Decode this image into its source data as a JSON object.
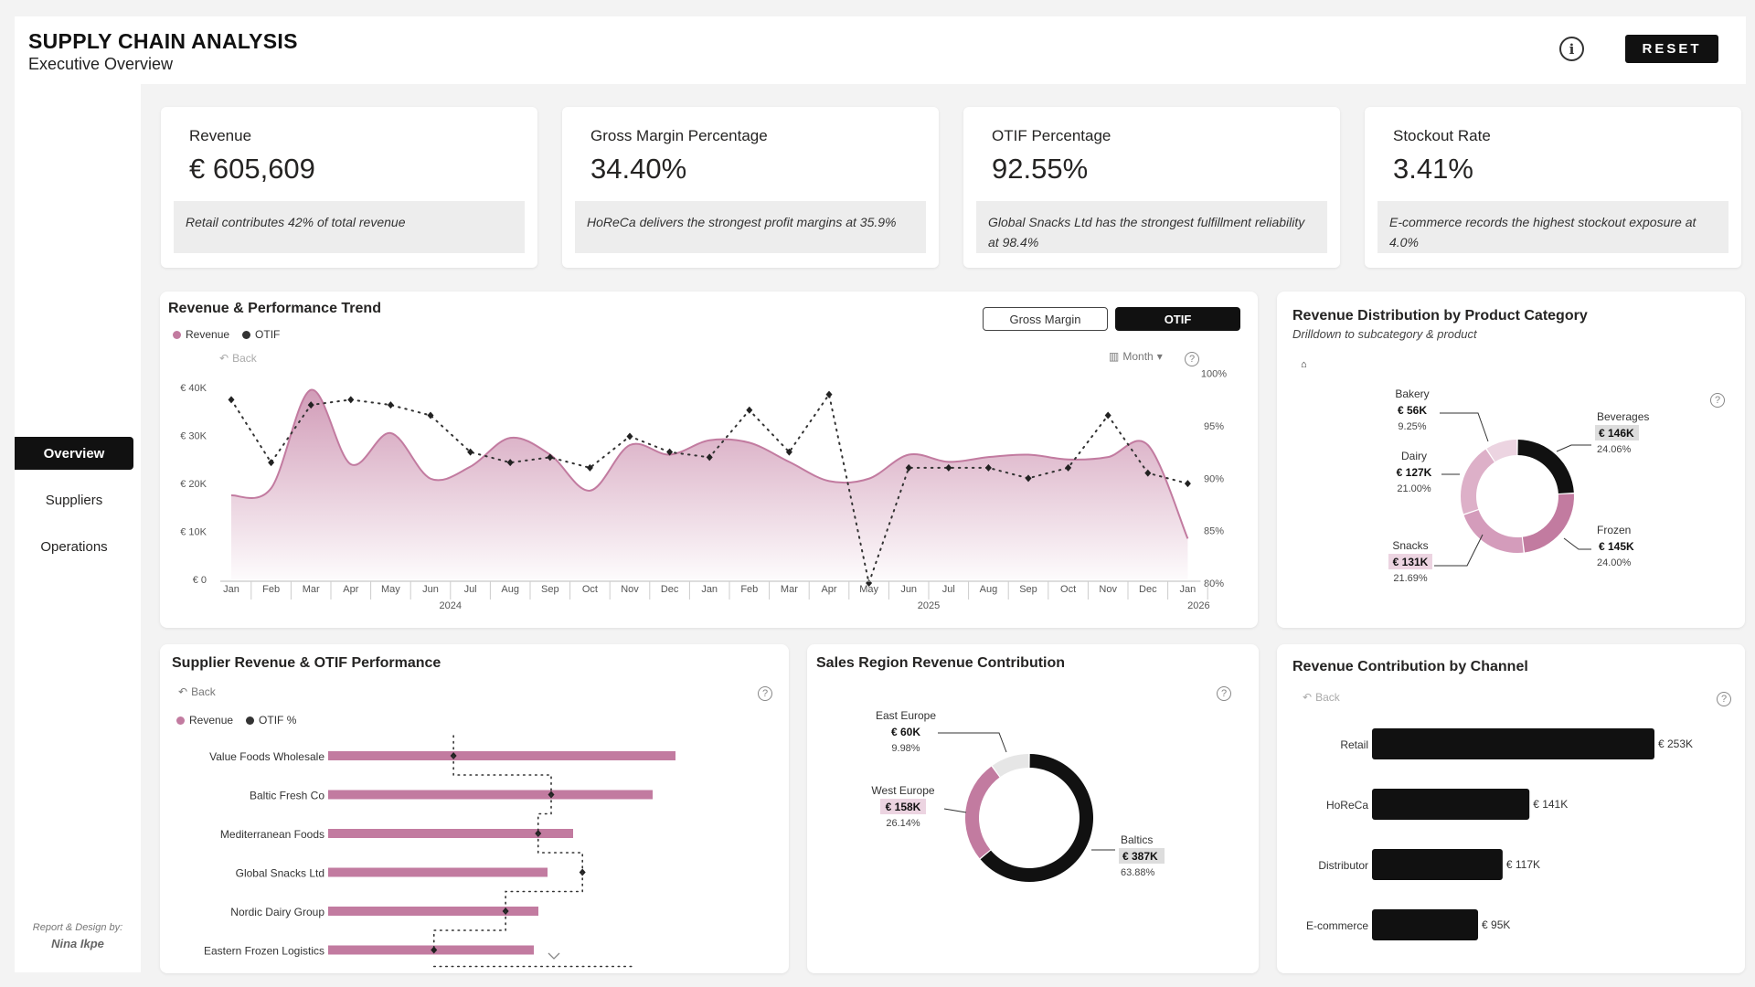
{
  "header": {
    "title": "SUPPLY CHAIN ANALYSIS",
    "subtitle": "Executive Overview",
    "info_label": "i",
    "reset_label": "RESET"
  },
  "sidebar": {
    "items": [
      {
        "label": "Overview",
        "active": true
      },
      {
        "label": "Suppliers",
        "active": false
      },
      {
        "label": "Operations",
        "active": false
      }
    ],
    "credit_label": "Report & Design by:",
    "credit_author": "Nina Ikpe"
  },
  "kpis": [
    {
      "label": "Revenue",
      "value": "€ 605,609",
      "note": "Retail contributes 42% of total revenue"
    },
    {
      "label": "Gross Margin Percentage",
      "value": "34.40%",
      "note": "HoReCa delivers the strongest profit margins at 35.9%"
    },
    {
      "label": "OTIF Percentage",
      "value": "92.55%",
      "note": "Global Snacks Ltd has the strongest fulfillment reliability at 98.4%"
    },
    {
      "label": "Stockout Rate",
      "value": "3.41%",
      "note": "E-commerce records the highest stockout exposure at 4.0%"
    }
  ],
  "trend": {
    "title": "Revenue & Performance Trend",
    "toggle_gross_margin": "Gross Margin",
    "toggle_otif": "OTIF",
    "back_label": "Back",
    "granularity_label": "Month",
    "legend_revenue": "Revenue",
    "legend_otif": "OTIF",
    "question": "?"
  },
  "category": {
    "title": "Revenue Distribution by Product Category",
    "subtitle": "Drilldown to subcategory & product",
    "question": "?"
  },
  "supplier": {
    "title": "Supplier Revenue & OTIF Performance",
    "back_label": "Back",
    "legend_revenue": "Revenue",
    "legend_otif": "OTIF %",
    "question": "?"
  },
  "region": {
    "title": "Sales Region Revenue Contribution",
    "question": "?"
  },
  "channel": {
    "title": "Revenue Contribution by Channel",
    "back_label": "Back",
    "question": "?"
  },
  "colors": {
    "pink": "#c27ba0",
    "pink_light": "#ddb0c8",
    "pink_pale": "#ecd4e1",
    "dark": "#111111",
    "gray": "#e6e6e6"
  },
  "chart_data": [
    {
      "type": "area",
      "name": "revenue-performance-trend",
      "x": [
        "Jan",
        "Feb",
        "Mar",
        "Apr",
        "May",
        "Jun",
        "Jul",
        "Aug",
        "Sep",
        "Oct",
        "Nov",
        "Dec",
        "Jan",
        "Feb",
        "Mar",
        "Apr",
        "May",
        "Jun",
        "Jul",
        "Aug",
        "Sep",
        "Oct",
        "Nov",
        "Dec",
        "Jan"
      ],
      "x_groups": [
        {
          "label": "2024",
          "start": 0,
          "end": 11
        },
        {
          "label": "2025",
          "start": 12,
          "end": 23
        },
        {
          "label": "2026",
          "start": 24,
          "end": 24
        }
      ],
      "series": [
        {
          "name": "Revenue",
          "axis": "left",
          "values": [
            17500,
            19000,
            39500,
            24000,
            30500,
            21000,
            23500,
            29500,
            26000,
            18500,
            28000,
            26000,
            29000,
            28500,
            24500,
            20500,
            21000,
            26000,
            24500,
            25500,
            26000,
            25000,
            25500,
            28000,
            8500
          ]
        },
        {
          "name": "OTIF",
          "axis": "right",
          "values": [
            97.5,
            91.5,
            97,
            97.5,
            97,
            96,
            92.5,
            91.5,
            92,
            91,
            94,
            92.5,
            92,
            96.5,
            92.5,
            98,
            80,
            91,
            91,
            91,
            90,
            91,
            96,
            90.5,
            89.5
          ]
        }
      ],
      "y_left": {
        "ticks": [
          "€ 0",
          "€ 10K",
          "€ 20K",
          "€ 30K",
          "€ 40K"
        ],
        "range": [
          0,
          40000
        ]
      },
      "y_right": {
        "ticks": [
          "80%",
          "85%",
          "90%",
          "95%",
          "100%"
        ],
        "range": [
          78,
          101
        ]
      }
    },
    {
      "type": "pie",
      "name": "revenue-by-product-category",
      "slices": [
        {
          "label": "Beverages",
          "value": 146,
          "value_label": "€ 146K",
          "pct": "24.06%"
        },
        {
          "label": "Frozen",
          "value": 145,
          "value_label": "€ 145K",
          "pct": "24.00%"
        },
        {
          "label": "Snacks",
          "value": 131,
          "value_label": "€ 131K",
          "pct": "21.69%"
        },
        {
          "label": "Dairy",
          "value": 127,
          "value_label": "€ 127K",
          "pct": "21.00%"
        },
        {
          "label": "Bakery",
          "value": 56,
          "value_label": "€ 56K",
          "pct": "9.25%"
        }
      ]
    },
    {
      "type": "bar",
      "name": "supplier-revenue-otif",
      "categories": [
        "Value Foods Wholesale",
        "Baltic Fresh Co",
        "Mediterranean Foods",
        "Global Snacks Ltd",
        "Nordic Dairy Group",
        "Eastern Frozen Logistics"
      ],
      "series": [
        {
          "name": "Revenue",
          "values": [
            380,
            355,
            268,
            240,
            230,
            225
          ]
        },
        {
          "name": "OTIF %",
          "values": [
            88.5,
            96,
            95,
            98.4,
            92.5,
            87
          ]
        }
      ]
    },
    {
      "type": "pie",
      "name": "sales-region-revenue",
      "slices": [
        {
          "label": "Baltics",
          "value": 387,
          "value_label": "€ 387K",
          "pct": "63.88%"
        },
        {
          "label": "West Europe",
          "value": 158,
          "value_label": "€ 158K",
          "pct": "26.14%"
        },
        {
          "label": "East Europe",
          "value": 60,
          "value_label": "€ 60K",
          "pct": "9.98%"
        }
      ]
    },
    {
      "type": "bar",
      "name": "revenue-by-channel",
      "categories": [
        "Retail",
        "HoReCa",
        "Distributor",
        "E-commerce"
      ],
      "values": [
        253,
        141,
        117,
        95
      ],
      "value_labels": [
        "€ 253K",
        "€ 141K",
        "€ 117K",
        "€ 95K"
      ]
    }
  ]
}
